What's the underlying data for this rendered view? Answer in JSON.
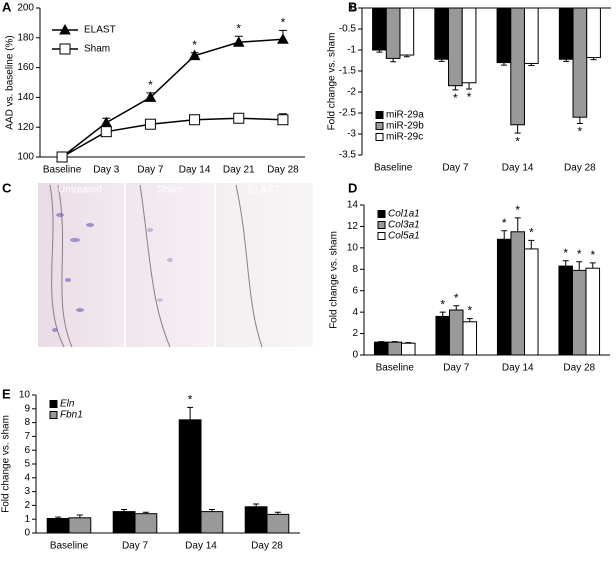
{
  "panels": [
    "A",
    "B",
    "C",
    "D",
    "E"
  ],
  "micrographs": {
    "labels": [
      "Untreated",
      "Sham",
      "ELAST"
    ]
  },
  "chart_data": [
    {
      "type": "line",
      "ylabel": "AAD vs. baseline (%)",
      "categories": [
        "Baseline",
        "Day 3",
        "Day 7",
        "Day 14",
        "Day 21",
        "Day 28"
      ],
      "ylim": [
        100,
        200
      ],
      "yticks": [
        100,
        120,
        140,
        160,
        180,
        200
      ],
      "legend": "upper left",
      "series": [
        {
          "name": "ELAST",
          "color": "#000000",
          "marker": "triangle",
          "values": [
            100,
            123,
            140,
            168,
            177,
            179
          ],
          "errors": [
            0,
            3,
            3,
            2,
            4,
            6
          ],
          "markers": [
            null,
            null,
            "*",
            "*",
            "*",
            "*"
          ]
        },
        {
          "name": "Sham",
          "color": "#ffffff",
          "marker": "square",
          "values": [
            100,
            117,
            122,
            125,
            126,
            125
          ],
          "errors": [
            0,
            3,
            3,
            2,
            3,
            4
          ],
          "markers": [
            null,
            null,
            null,
            null,
            null,
            null
          ]
        }
      ]
    },
    {
      "type": "bar",
      "ylabel": "Fold change vs. sham",
      "categories": [
        "Baseline",
        "Day 7",
        "Day 14",
        "Day 28"
      ],
      "ylim": [
        -3.5,
        0
      ],
      "yticks": [
        0,
        -0.5,
        -1,
        -1.5,
        -2,
        -2.5,
        -3,
        -3.5
      ],
      "legend": "lower left",
      "series": [
        {
          "name": "miR-29a",
          "color": "#000000",
          "values": [
            -1.0,
            -1.22,
            -1.3,
            -1.22
          ],
          "errors": [
            0.05,
            0.05,
            0.06,
            0.05
          ],
          "markers": [
            null,
            null,
            null,
            null
          ]
        },
        {
          "name": "miR-29b",
          "color": "#999999",
          "values": [
            -1.2,
            -1.85,
            -2.78,
            -2.6
          ],
          "errors": [
            0.08,
            0.1,
            0.2,
            0.15
          ],
          "markers": [
            null,
            "*",
            "*",
            "*"
          ]
        },
        {
          "name": "miR-29c",
          "color": "#ffffff",
          "values": [
            -1.12,
            -1.78,
            -1.32,
            -1.18
          ],
          "errors": [
            0.04,
            0.15,
            0.05,
            0.05
          ],
          "markers": [
            null,
            "*",
            null,
            null
          ]
        }
      ]
    },
    {
      "type": "bar",
      "ylabel": "Fold change vs. sham",
      "legend_italic": true,
      "categories": [
        "Baseline",
        "Day 7",
        "Day 14",
        "Day 28"
      ],
      "ylim": [
        0,
        14
      ],
      "yticks": [
        0,
        2,
        4,
        6,
        8,
        10,
        12,
        14
      ],
      "legend": "upper left",
      "series": [
        {
          "name": "Col1a1",
          "color": "#000000",
          "values": [
            1.2,
            3.6,
            10.8,
            8.3
          ],
          "errors": [
            0.05,
            0.4,
            0.8,
            0.5
          ],
          "markers": [
            null,
            "*",
            "*",
            "*"
          ]
        },
        {
          "name": "Col3a1",
          "color": "#999999",
          "values": [
            1.2,
            4.2,
            11.5,
            7.9
          ],
          "errors": [
            0.05,
            0.4,
            1.3,
            0.8
          ],
          "markers": [
            null,
            "*",
            "*",
            "*"
          ]
        },
        {
          "name": "Col5a1",
          "color": "#ffffff",
          "values": [
            1.1,
            3.1,
            9.9,
            8.1
          ],
          "errors": [
            0.05,
            0.3,
            0.8,
            0.5
          ],
          "markers": [
            null,
            "*",
            "*",
            "*"
          ]
        }
      ]
    },
    {
      "type": "bar",
      "ylabel": "Fold change vs. sham",
      "legend_italic": true,
      "categories": [
        "Baseline",
        "Day 7",
        "Day 14",
        "Day 28"
      ],
      "ylim": [
        0,
        10
      ],
      "yticks": [
        0,
        1,
        2,
        3,
        4,
        5,
        6,
        7,
        8,
        9,
        10
      ],
      "legend": "upper left",
      "series": [
        {
          "name": "Eln",
          "color": "#000000",
          "values": [
            1.05,
            1.55,
            8.2,
            1.9
          ],
          "errors": [
            0.1,
            0.15,
            0.9,
            0.2
          ],
          "markers": [
            null,
            null,
            "*",
            null
          ]
        },
        {
          "name": "Fbn1",
          "color": "#999999",
          "values": [
            1.1,
            1.4,
            1.55,
            1.35
          ],
          "errors": [
            0.2,
            0.1,
            0.15,
            0.15
          ],
          "markers": [
            null,
            null,
            null,
            null
          ]
        }
      ]
    }
  ]
}
